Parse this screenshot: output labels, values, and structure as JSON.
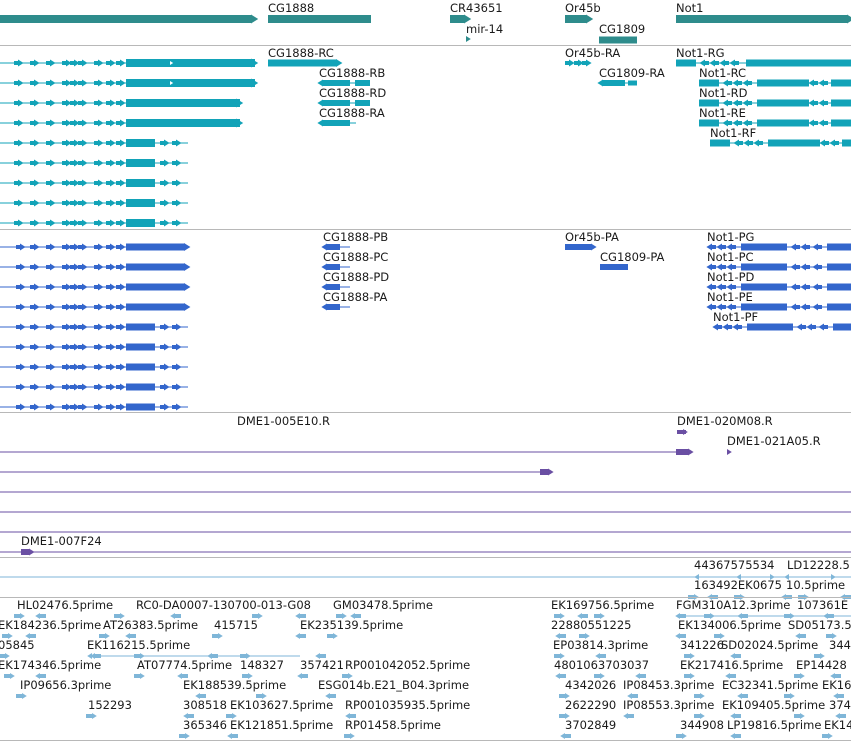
{
  "colors": {
    "gene": "#2e8c8c",
    "transcript": "#12a3b8",
    "protein": "#3366cc",
    "probe": "#6a4fa3",
    "est": "#7fb6d8",
    "separator": "#b8b8b8"
  },
  "gene_track": {
    "labels": [
      "CG1888",
      "CR43651",
      "mir-14",
      "Or45b",
      "CG1809",
      "Not1"
    ]
  },
  "transcript_track": {
    "labels": [
      "CG1888-RC",
      "CG1888-RB",
      "CG1888-RD",
      "CG1888-RA",
      "Or45b-RA",
      "CG1809-RA",
      "Not1-RG",
      "Not1-RC",
      "Not1-RD",
      "Not1-RE",
      "Not1-RF"
    ]
  },
  "protein_track": {
    "labels": [
      "CG1888-PB",
      "CG1888-PC",
      "CG1888-PD",
      "CG1888-PA",
      "Or45b-PA",
      "CG1809-PA",
      "Not1-PG",
      "Not1-PC",
      "Not1-PD",
      "Not1-PE",
      "Not1-PF"
    ]
  },
  "probe_track": {
    "labels": [
      "DME1-005E10.R",
      "DME1-020M08.R",
      "DME1-021A05.R",
      "DME1-007F24"
    ]
  },
  "est_track": {
    "top_labels": [
      "44367575534",
      "LD12228.5",
      "163492EK0675",
      "10.5prime"
    ],
    "labels": [
      "HL02476.5prime",
      "RC0-DA0007-130700-013-G08",
      "GM03478.5prime",
      "EK169756.5prime",
      "FGM310A12.3prime",
      "107361E",
      "EK184236.5prime",
      "AT26383.5prime",
      "415715",
      "EK235139.5prime",
      "22880551225",
      "EK134006.5prime",
      "SD05173.5",
      "05845",
      "EK116215.5prime",
      "EP03814.3prime",
      "341226",
      "SD02024.5prime",
      "344",
      "EK174346.5prime",
      "AT07774.5prime",
      "148327",
      "357421",
      "RP001042052.5prime",
      "4801063703037",
      "EK217416.5prime",
      "EP14428",
      "IP09656.3prime",
      "EK188539.5prime",
      "ESG014b.E21_B04.3prime",
      "4342026",
      "IP08453.3prime",
      "EC32341.5prime",
      "EK16",
      "152293",
      "308518",
      "EK103627.5prime",
      "RP001035935.5prime",
      "2622290",
      "IP08553.3prime",
      "EK109405.5prime",
      "374",
      "365346",
      "EK121851.5prime",
      "RP01458.5prime",
      "3702849",
      "344908",
      "LP19816.5prime",
      "EK14"
    ]
  }
}
